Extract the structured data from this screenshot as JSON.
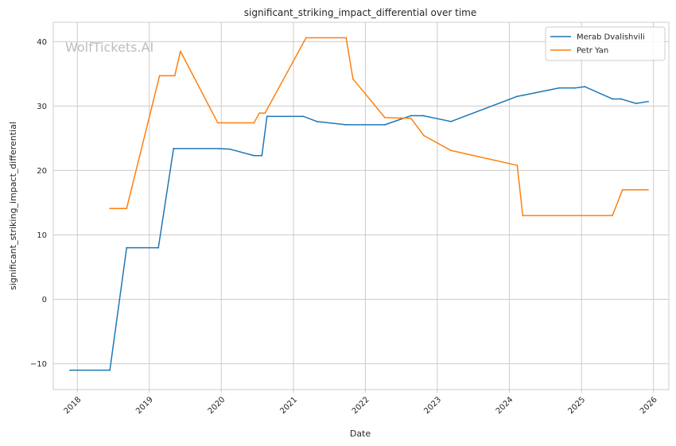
{
  "chart_data": {
    "type": "line",
    "title": "significant_striking_impact_differential over time",
    "xlabel": "Date",
    "ylabel": "significant_striking_impact_differential",
    "watermark": "WolfTickets.AI",
    "x_axis": {
      "type": "date",
      "range": [
        "2017-09-01",
        "2026-03-20"
      ],
      "ticks": [
        "2018",
        "2019",
        "2020",
        "2021",
        "2022",
        "2023",
        "2024",
        "2025",
        "2026"
      ]
    },
    "y_axis": {
      "range": [
        -14,
        43
      ],
      "ticks": [
        -10,
        0,
        10,
        20,
        30,
        40
      ],
      "tick_labels": [
        "−10",
        "0",
        "10",
        "20",
        "30",
        "40"
      ]
    },
    "grid": true,
    "legend": {
      "position": "top-right"
    },
    "series": [
      {
        "name": "Merab Dvalishvili",
        "color": "#1f77b4",
        "points": [
          [
            "2017-11-25",
            -11.0
          ],
          [
            "2018-06-15",
            -11.0
          ],
          [
            "2018-09-08",
            8.0
          ],
          [
            "2019-02-16",
            8.0
          ],
          [
            "2019-05-04",
            23.4
          ],
          [
            "2019-12-20",
            23.4
          ],
          [
            "2020-02-15",
            23.3
          ],
          [
            "2020-06-15",
            22.3
          ],
          [
            "2020-07-25",
            22.3
          ],
          [
            "2020-08-20",
            28.4
          ],
          [
            "2021-02-20",
            28.4
          ],
          [
            "2021-04-30",
            27.6
          ],
          [
            "2021-09-25",
            27.1
          ],
          [
            "2022-04-10",
            27.1
          ],
          [
            "2022-08-20",
            28.5
          ],
          [
            "2022-10-20",
            28.5
          ],
          [
            "2023-03-11",
            27.6
          ],
          [
            "2024-02-10",
            31.5
          ],
          [
            "2024-03-15",
            31.7
          ],
          [
            "2024-09-10",
            32.8
          ],
          [
            "2024-12-01",
            32.8
          ],
          [
            "2025-01-18",
            33.0
          ],
          [
            "2025-06-07",
            31.1
          ],
          [
            "2025-07-20",
            31.1
          ],
          [
            "2025-10-05",
            30.4
          ],
          [
            "2025-12-05",
            30.7
          ]
        ]
      },
      {
        "name": "Petr Yan",
        "color": "#ff7f0e",
        "points": [
          [
            "2018-06-15",
            14.1
          ],
          [
            "2018-09-08",
            14.1
          ],
          [
            "2019-02-22",
            34.7
          ],
          [
            "2019-05-10",
            34.7
          ],
          [
            "2019-06-08",
            38.5
          ],
          [
            "2019-12-14",
            27.4
          ],
          [
            "2020-06-15",
            27.4
          ],
          [
            "2020-07-12",
            28.9
          ],
          [
            "2020-08-10",
            28.9
          ],
          [
            "2021-03-06",
            40.6
          ],
          [
            "2021-09-25",
            40.6
          ],
          [
            "2021-10-30",
            34.2
          ],
          [
            "2022-04-10",
            28.2
          ],
          [
            "2022-08-20",
            28.1
          ],
          [
            "2022-10-25",
            25.4
          ],
          [
            "2023-03-11",
            23.1
          ],
          [
            "2024-02-10",
            20.8
          ],
          [
            "2024-03-09",
            13.0
          ],
          [
            "2025-06-07",
            13.0
          ],
          [
            "2025-07-28",
            17.0
          ],
          [
            "2025-12-05",
            17.0
          ]
        ]
      }
    ]
  }
}
